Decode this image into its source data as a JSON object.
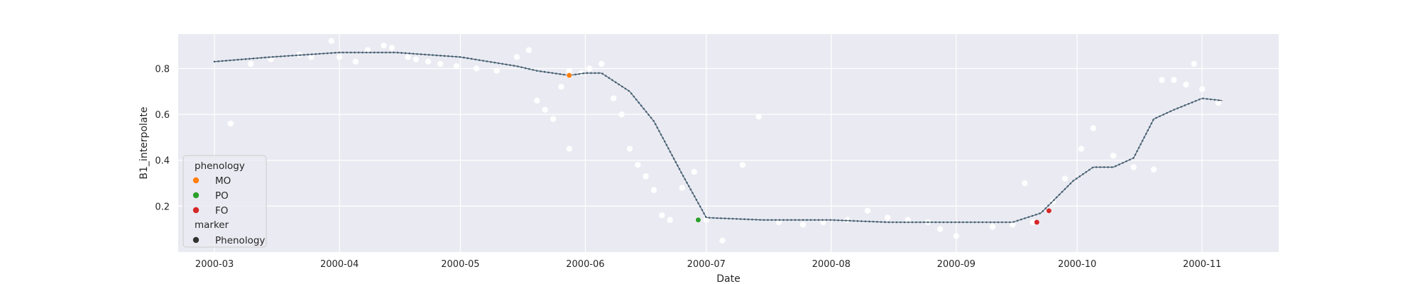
{
  "chart_data": {
    "type": "scatter",
    "xlabel": "Date",
    "ylabel": "B1_interpolate",
    "x_tick_labels": [
      "2000-03",
      "2000-04",
      "2000-05",
      "2000-06",
      "2000-07",
      "2000-08",
      "2000-09",
      "2000-10",
      "2000-11"
    ],
    "x_tick_dates": [
      "2000-03-01",
      "2000-04-01",
      "2000-05-01",
      "2000-06-01",
      "2000-07-01",
      "2000-08-01",
      "2000-09-01",
      "2000-10-01",
      "2000-11-01"
    ],
    "y_ticks": [
      0.2,
      0.4,
      0.6,
      0.8
    ],
    "y_tick_labels": [
      "0.2",
      "0.4",
      "0.6",
      "0.8"
    ],
    "xlim": [
      "2000-02-21",
      "2000-11-20"
    ],
    "ylim": [
      0.0,
      0.95
    ],
    "grid": true,
    "background": "#eaeaf2",
    "legend_placement": "lower-left",
    "legend": {
      "title": "phenology",
      "entries": [
        {
          "label": "MO",
          "color": "#ff7f0e"
        },
        {
          "label": "PO",
          "color": "#2ca02c"
        },
        {
          "label": "FO",
          "color": "#d62728"
        }
      ],
      "marker_title": "marker",
      "marker_entries": [
        {
          "label": "Phenology",
          "color": "#333333"
        }
      ]
    },
    "series": [
      {
        "kind": "raw-observations",
        "color": "#ffffff",
        "x": [
          "2000-03-05",
          "2000-03-10",
          "2000-03-15",
          "2000-03-22",
          "2000-03-25",
          "2000-03-30",
          "2000-04-01",
          "2000-04-05",
          "2000-04-08",
          "2000-04-12",
          "2000-04-14",
          "2000-04-18",
          "2000-04-20",
          "2000-04-23",
          "2000-04-26",
          "2000-04-30",
          "2000-05-05",
          "2000-05-10",
          "2000-05-15",
          "2000-05-18",
          "2000-05-20",
          "2000-05-22",
          "2000-05-24",
          "2000-05-26",
          "2000-05-28",
          "2000-05-28",
          "2000-05-31",
          "2000-06-02",
          "2000-06-05",
          "2000-06-08",
          "2000-06-10",
          "2000-06-12",
          "2000-06-14",
          "2000-06-16",
          "2000-06-18",
          "2000-06-20",
          "2000-06-22",
          "2000-06-25",
          "2000-06-28",
          "2000-07-01",
          "2000-07-05",
          "2000-07-10",
          "2000-07-14",
          "2000-07-19",
          "2000-07-25",
          "2000-07-30",
          "2000-08-05",
          "2000-08-10",
          "2000-08-15",
          "2000-08-20",
          "2000-08-25",
          "2000-08-28",
          "2000-09-01",
          "2000-09-10",
          "2000-09-15",
          "2000-09-18",
          "2000-09-20",
          "2000-09-25",
          "2000-09-28",
          "2000-10-02",
          "2000-10-05",
          "2000-10-10",
          "2000-10-15",
          "2000-10-20",
          "2000-10-22",
          "2000-10-25",
          "2000-10-28",
          "2000-10-30",
          "2000-11-01",
          "2000-11-05"
        ],
        "y": [
          0.56,
          0.82,
          0.84,
          0.86,
          0.85,
          0.92,
          0.85,
          0.83,
          0.88,
          0.9,
          0.89,
          0.85,
          0.84,
          0.83,
          0.82,
          0.81,
          0.8,
          0.79,
          0.85,
          0.88,
          0.66,
          0.62,
          0.58,
          0.72,
          0.45,
          0.79,
          0.78,
          0.8,
          0.82,
          0.67,
          0.6,
          0.45,
          0.38,
          0.33,
          0.27,
          0.16,
          0.14,
          0.28,
          0.35,
          0.14,
          0.05,
          0.38,
          0.59,
          0.13,
          0.12,
          0.13,
          0.14,
          0.18,
          0.15,
          0.14,
          0.13,
          0.1,
          0.07,
          0.11,
          0.12,
          0.3,
          0.13,
          0.22,
          0.32,
          0.45,
          0.54,
          0.42,
          0.37,
          0.36,
          0.75,
          0.75,
          0.73,
          0.82,
          0.71,
          0.65
        ]
      },
      {
        "kind": "interpolated-curve",
        "color": "#4c5a66",
        "x": [
          "2000-03-01",
          "2000-03-15",
          "2000-04-01",
          "2000-04-15",
          "2000-05-01",
          "2000-05-15",
          "2000-05-20",
          "2000-05-28",
          "2000-06-01",
          "2000-06-05",
          "2000-06-12",
          "2000-06-18",
          "2000-06-25",
          "2000-07-01",
          "2000-07-15",
          "2000-08-01",
          "2000-08-15",
          "2000-09-01",
          "2000-09-15",
          "2000-09-22",
          "2000-09-30",
          "2000-10-05",
          "2000-10-10",
          "2000-10-15",
          "2000-10-20",
          "2000-10-25",
          "2000-11-01",
          "2000-11-06"
        ],
        "y": [
          0.83,
          0.85,
          0.87,
          0.87,
          0.85,
          0.81,
          0.79,
          0.77,
          0.78,
          0.78,
          0.7,
          0.57,
          0.34,
          0.15,
          0.14,
          0.14,
          0.13,
          0.13,
          0.13,
          0.17,
          0.31,
          0.37,
          0.37,
          0.41,
          0.58,
          0.62,
          0.67,
          0.66
        ]
      }
    ],
    "phenology_points": [
      {
        "label": "MO",
        "x": "2000-05-28",
        "y": 0.77,
        "color": "#ff7f0e"
      },
      {
        "label": "PO",
        "x": "2000-06-29",
        "y": 0.14,
        "color": "#2ca02c"
      },
      {
        "label": "FO",
        "x": "2000-09-21",
        "y": 0.13,
        "color": "#d62728"
      },
      {
        "label": "FO",
        "x": "2000-09-24",
        "y": 0.18,
        "color": "#d62728"
      }
    ]
  }
}
